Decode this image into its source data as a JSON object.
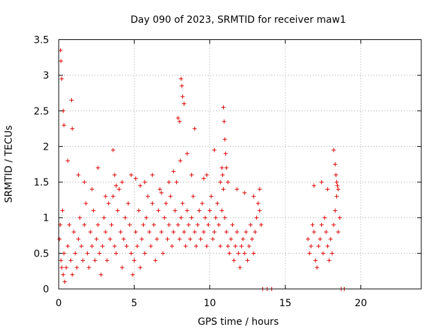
{
  "chart_data": {
    "type": "scatter",
    "title": "Day 090 of 2023, SRMTID for receiver maw1",
    "xlabel": "GPS time / hours",
    "ylabel": "SRMTID / TECUs",
    "xlim": [
      0,
      24
    ],
    "ylim": [
      0,
      3.5
    ],
    "x_ticks": [
      0,
      5,
      10,
      15,
      20
    ],
    "y_ticks": [
      0,
      0.5,
      1,
      1.5,
      2,
      2.5,
      3,
      3.5
    ],
    "x_tick_labels": [
      "0",
      "5",
      "10",
      "15",
      "20"
    ],
    "y_tick_labels": [
      "0",
      "0.5",
      "1",
      "1.5",
      "2",
      "2.5",
      "3",
      "3.5"
    ],
    "grid": true,
    "marker": "+",
    "color": "#dd0000",
    "series": [
      {
        "name": "SRMTID",
        "x": [
          0.05,
          0.1,
          0.15,
          0.2,
          0.25,
          0.3,
          0.35,
          0.4,
          0.5,
          0.6,
          0.7,
          0.8,
          0.9,
          1.0,
          1.1,
          1.2,
          1.3,
          1.4,
          1.5,
          1.6,
          1.7,
          1.8,
          1.9,
          2.0,
          2.1,
          2.2,
          2.3,
          2.4,
          2.5,
          2.6,
          2.7,
          2.8,
          2.9,
          3.0,
          3.1,
          3.2,
          3.3,
          3.4,
          3.5,
          3.6,
          3.7,
          3.8,
          3.9,
          4.0,
          4.1,
          4.2,
          4.3,
          4.4,
          4.5,
          4.6,
          4.7,
          4.8,
          4.9,
          5.0,
          5.1,
          5.2,
          5.3,
          5.4,
          5.5,
          5.6,
          5.7,
          5.8,
          5.9,
          6.0,
          6.1,
          6.2,
          6.3,
          6.4,
          6.5,
          6.6,
          6.7,
          6.8,
          6.9,
          7.0,
          7.1,
          7.2,
          7.3,
          7.4,
          7.5,
          7.6,
          7.7,
          7.8,
          7.9,
          8.0,
          8.1,
          8.2,
          8.3,
          8.4,
          8.5,
          8.6,
          8.7,
          8.8,
          8.9,
          9.0,
          9.1,
          9.2,
          9.3,
          9.4,
          9.5,
          9.6,
          9.7,
          9.8,
          9.9,
          10.0,
          10.1,
          10.2,
          10.3,
          10.4,
          10.5,
          10.6,
          10.7,
          10.8,
          10.9,
          11.0,
          11.1,
          11.2,
          11.3,
          11.4,
          11.5,
          11.6,
          11.7,
          11.8,
          11.9,
          12.0,
          12.1,
          12.2,
          12.3,
          12.4,
          12.5,
          12.6,
          12.7,
          12.8,
          12.9,
          13.0,
          13.1,
          13.2,
          13.3,
          13.4,
          13.5,
          13.8,
          14.1,
          16.5,
          16.6,
          16.7,
          16.8,
          16.9,
          17.0,
          17.1,
          17.2,
          17.3,
          17.4,
          17.5,
          17.6,
          17.7,
          17.8,
          17.9,
          18.0,
          18.1,
          18.2,
          18.3,
          18.4,
          18.5,
          18.6,
          18.7,
          18.9,
          0.12,
          0.15,
          0.2,
          0.3,
          0.35,
          0.6,
          0.85,
          0.9,
          1.3,
          1.7,
          2.2,
          2.6,
          3.1,
          3.6,
          3.7,
          3.8,
          4.2,
          4.8,
          5.1,
          5.4,
          5.7,
          6.2,
          6.8,
          7.3,
          7.6,
          7.9,
          8.0,
          8.05,
          8.1,
          8.15,
          8.2,
          8.3,
          8.5,
          8.8,
          9.0,
          9.6,
          9.8,
          10.3,
          10.7,
          10.8,
          10.85,
          10.9,
          10.95,
          11.0,
          11.05,
          11.1,
          11.2,
          11.8,
          12.3,
          12.9,
          13.3,
          16.9,
          17.4,
          17.8,
          18.2,
          18.3,
          18.35,
          18.4,
          18.45,
          18.5
        ],
        "y": [
          0.7,
          0.9,
          0.4,
          0.3,
          1.1,
          0.2,
          0.5,
          0.1,
          0.3,
          0.6,
          0.9,
          0.4,
          0.2,
          0.8,
          0.5,
          0.3,
          0.7,
          1.0,
          0.6,
          0.4,
          0.9,
          1.2,
          0.5,
          0.3,
          0.8,
          0.6,
          1.1,
          0.4,
          0.7,
          0.9,
          0.5,
          0.2,
          0.6,
          1.0,
          0.8,
          0.4,
          1.2,
          0.7,
          0.9,
          1.3,
          0.6,
          0.5,
          1.1,
          1.4,
          0.8,
          0.3,
          0.7,
          1.0,
          0.6,
          1.2,
          0.9,
          0.5,
          0.2,
          0.4,
          0.8,
          0.6,
          1.1,
          0.3,
          0.7,
          0.9,
          0.5,
          1.0,
          1.3,
          0.8,
          0.6,
          1.2,
          0.9,
          0.4,
          0.7,
          1.1,
          1.4,
          0.8,
          0.5,
          1.0,
          1.2,
          0.7,
          0.9,
          1.3,
          0.6,
          0.8,
          1.1,
          1.5,
          0.9,
          0.7,
          1.0,
          1.2,
          0.8,
          0.6,
          1.1,
          0.9,
          0.7,
          1.0,
          1.3,
          0.8,
          0.6,
          0.9,
          1.1,
          0.7,
          1.2,
          0.8,
          1.0,
          0.6,
          0.9,
          1.1,
          1.3,
          0.7,
          0.8,
          1.0,
          1.2,
          0.9,
          0.6,
          1.1,
          1.4,
          1.0,
          0.8,
          0.6,
          0.5,
          0.7,
          0.9,
          0.4,
          0.6,
          0.8,
          0.5,
          0.3,
          0.6,
          0.7,
          0.5,
          0.8,
          0.4,
          0.6,
          0.9,
          0.7,
          0.5,
          0.8,
          1.0,
          1.2,
          1.1,
          0.9,
          0.0,
          0.0,
          0.0,
          0.7,
          0.5,
          0.6,
          0.9,
          0.8,
          0.4,
          0.3,
          0.6,
          0.7,
          0.9,
          0.5,
          1.0,
          0.8,
          0.6,
          0.4,
          0.7,
          0.5,
          0.9,
          1.1,
          1.3,
          0.8,
          1.0,
          0.0,
          0.0,
          3.35,
          3.2,
          2.95,
          2.5,
          2.3,
          1.8,
          2.65,
          2.25,
          1.6,
          1.5,
          1.4,
          1.7,
          1.3,
          1.95,
          1.6,
          1.45,
          1.5,
          1.6,
          1.55,
          1.45,
          1.5,
          1.6,
          1.35,
          1.5,
          1.65,
          2.4,
          2.35,
          1.8,
          2.95,
          2.85,
          2.7,
          2.6,
          1.9,
          1.6,
          2.25,
          1.55,
          1.6,
          1.95,
          1.5,
          1.7,
          1.6,
          2.55,
          2.35,
          2.1,
          1.9,
          1.7,
          1.5,
          1.4,
          1.35,
          1.3,
          1.4,
          1.45,
          1.5,
          1.4,
          1.95,
          1.75,
          1.6,
          1.5,
          1.45,
          1.4
        ]
      }
    ]
  }
}
